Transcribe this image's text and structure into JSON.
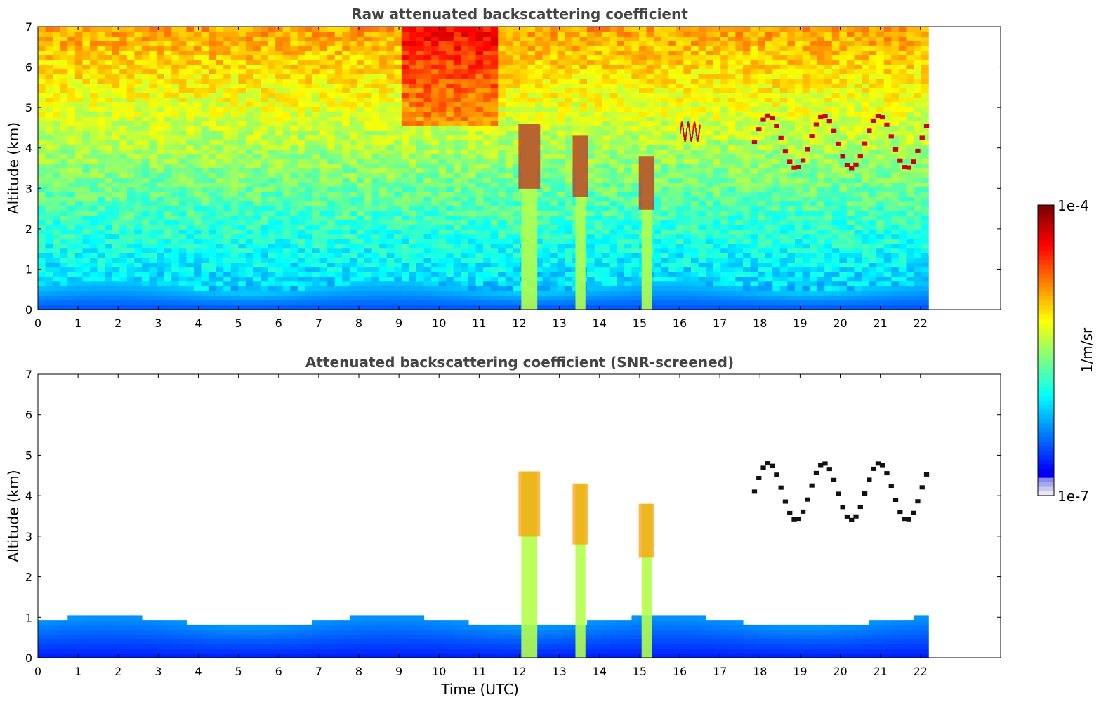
{
  "chart_data": [
    {
      "type": "heatmap",
      "title": "Raw attenuated backscattering coefficient",
      "xlabel": "",
      "ylabel": "Altitude (km)",
      "xlim": [
        0,
        24
      ],
      "ylim": [
        0,
        7
      ],
      "x_ticks": [
        "0",
        "1",
        "2",
        "3",
        "4",
        "5",
        "6",
        "7",
        "8",
        "9",
        "10",
        "11",
        "12",
        "13",
        "14",
        "15",
        "16",
        "17",
        "18",
        "19",
        "20",
        "21",
        "22"
      ],
      "y_ticks": [
        "0",
        "1",
        "2",
        "3",
        "4",
        "5",
        "6",
        "7"
      ],
      "data_end_time": 22.2,
      "colorscale": "jet",
      "features": [
        {
          "name": "boundary layer",
          "x": [
            0,
            22.2
          ],
          "y": [
            0,
            0.6
          ],
          "level": "low"
        },
        {
          "name": "precipitation shaft",
          "x": [
            12.05,
            12.45
          ],
          "y": [
            0,
            4.6
          ],
          "level": "high"
        },
        {
          "name": "precipitation shaft",
          "x": [
            13.4,
            13.65
          ],
          "y": [
            0,
            4.3
          ],
          "level": "high"
        },
        {
          "name": "precipitation shaft",
          "x": [
            15.05,
            15.3
          ],
          "y": [
            0,
            3.8
          ],
          "level": "high"
        },
        {
          "name": "cloud layer",
          "x": [
            17.8,
            22.2
          ],
          "y": [
            3.5,
            4.8
          ],
          "level": "max"
        },
        {
          "name": "cloud layer",
          "x": [
            16.0,
            16.5
          ],
          "y": [
            4.2,
            4.6
          ],
          "level": "max"
        }
      ]
    },
    {
      "type": "heatmap",
      "title": "Attenuated backscattering coefficient (SNR-screened)",
      "xlabel": "Time (UTC)",
      "ylabel": "Altitude (km)",
      "xlim": [
        0,
        24
      ],
      "ylim": [
        0,
        7
      ],
      "x_ticks": [
        "0",
        "1",
        "2",
        "3",
        "4",
        "5",
        "6",
        "7",
        "8",
        "9",
        "10",
        "11",
        "12",
        "13",
        "14",
        "15",
        "16",
        "17",
        "18",
        "19",
        "20",
        "21",
        "22"
      ],
      "y_ticks": [
        "0",
        "1",
        "2",
        "3",
        "4",
        "5",
        "6",
        "7"
      ],
      "data_end_time": 22.2,
      "colorscale": "jet",
      "features": [
        {
          "name": "boundary layer",
          "x": [
            0,
            22.2
          ],
          "y": [
            0,
            1.0
          ],
          "level": "low"
        },
        {
          "name": "precipitation shaft",
          "x": [
            12.05,
            12.45
          ],
          "y": [
            0,
            4.6
          ],
          "level": "high"
        },
        {
          "name": "precipitation shaft",
          "x": [
            13.4,
            13.65
          ],
          "y": [
            0,
            4.3
          ],
          "level": "high"
        },
        {
          "name": "precipitation shaft",
          "x": [
            15.05,
            15.3
          ],
          "y": [
            0,
            3.8
          ],
          "level": "high"
        },
        {
          "name": "cloud layer",
          "x": [
            17.8,
            22.2
          ],
          "y": [
            3.4,
            4.8
          ],
          "level": "max"
        }
      ]
    }
  ],
  "colorbar": {
    "label": "1/m/sr",
    "max_label": "1e-4",
    "min_label": "1e-7",
    "scale": "log",
    "range": [
      1e-07,
      0.0001
    ]
  },
  "colors": {
    "axis": "#000000",
    "title_text": "#444444",
    "cmap_low": "#00008f",
    "cmap_high": "#800000"
  }
}
